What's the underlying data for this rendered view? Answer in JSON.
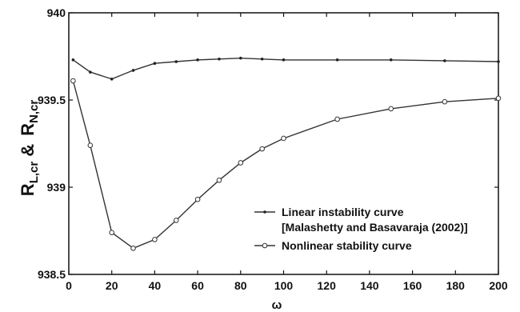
{
  "chart_data": {
    "type": "line",
    "xlabel": "ω",
    "ylabel": {
      "base1": "R",
      "sub1": "L,cr",
      "amp": "&",
      "base2": "R",
      "sub2": "N,cr"
    },
    "xlim": [
      0,
      200
    ],
    "ylim": [
      938.5,
      940
    ],
    "xticks": [
      0,
      20,
      40,
      60,
      80,
      100,
      120,
      140,
      160,
      180,
      200
    ],
    "yticks": [
      938.5,
      939,
      939.5,
      940
    ],
    "ytick_labels": [
      "938.5",
      "939",
      "939.5",
      "940"
    ],
    "grid": false,
    "legend": {
      "position": "bottom-right",
      "entries": [
        {
          "lines": [
            "Linear instability curve",
            "[Malashetty and Basavaraja (2002)]"
          ],
          "marker": "dot"
        },
        {
          "lines": [
            "Nonlinear stability curve"
          ],
          "marker": "circle"
        }
      ]
    },
    "series": [
      {
        "name": "Linear instability curve [Malashetty and Basavaraja (2002)]",
        "marker": "dot",
        "x": [
          2,
          10,
          20,
          30,
          40,
          50,
          60,
          70,
          80,
          90,
          100,
          125,
          150,
          175,
          200
        ],
        "y": [
          939.73,
          939.66,
          939.62,
          939.67,
          939.71,
          939.72,
          939.73,
          939.735,
          939.74,
          939.735,
          939.73,
          939.73,
          939.73,
          939.725,
          939.72
        ]
      },
      {
        "name": "Nonlinear stability curve",
        "marker": "circle",
        "x": [
          2,
          10,
          20,
          30,
          40,
          50,
          60,
          70,
          80,
          90,
          100,
          125,
          150,
          175,
          200
        ],
        "y": [
          939.61,
          939.24,
          938.74,
          938.65,
          938.7,
          938.81,
          938.93,
          939.04,
          939.14,
          939.22,
          939.28,
          939.39,
          939.45,
          939.49,
          939.51
        ]
      }
    ]
  }
}
